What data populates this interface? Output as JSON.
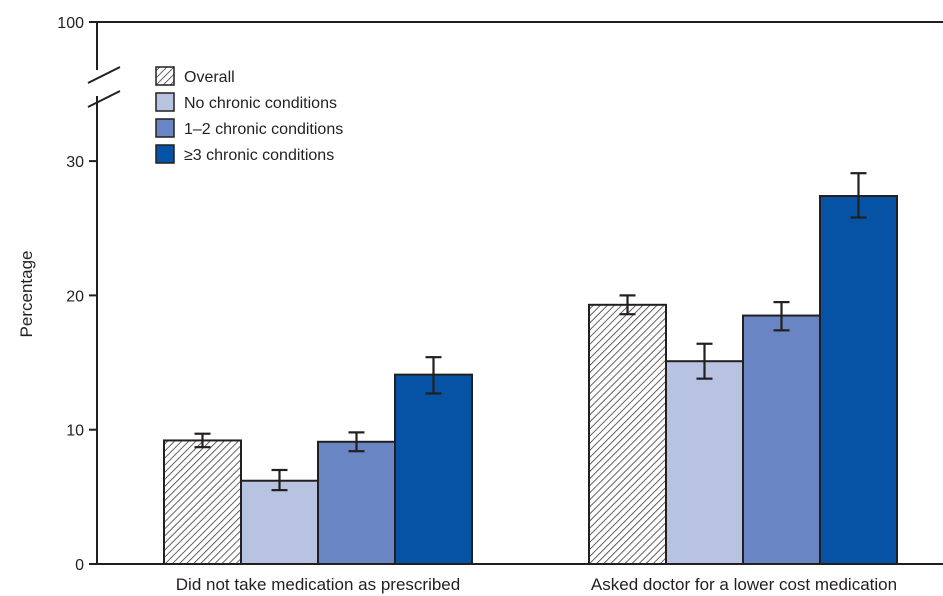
{
  "chart_data": {
    "type": "bar",
    "title": "",
    "xlabel": "",
    "ylabel": "Percentage",
    "categories": [
      "Did not take medication as prescribed",
      "Asked doctor for a lower cost medication"
    ],
    "series": [
      {
        "name": "Overall",
        "color": "#ffffff",
        "pattern": "diagonal-hatch",
        "values": [
          9.2,
          19.3
        ],
        "ci_low": [
          8.7,
          18.6
        ],
        "ci_high": [
          9.7,
          20.0
        ]
      },
      {
        "name": "No chronic conditions",
        "color": "#b8c3e2",
        "values": [
          6.2,
          15.1
        ],
        "ci_low": [
          5.5,
          13.8
        ],
        "ci_high": [
          7.0,
          16.4
        ]
      },
      {
        "name": "1–2 chronic conditions",
        "color": "#6985c4",
        "values": [
          9.1,
          18.5
        ],
        "ci_low": [
          8.4,
          17.4
        ],
        "ci_high": [
          9.8,
          19.5
        ]
      },
      {
        "name": "≥3 chronic conditions",
        "color": "#0653a6",
        "values": [
          14.1,
          27.4
        ],
        "ci_low": [
          12.7,
          25.8
        ],
        "ci_high": [
          15.4,
          29.1
        ]
      }
    ],
    "y_ticks": [
      "0",
      "10",
      "20",
      "30",
      "100"
    ],
    "ylim": [
      0,
      30
    ],
    "y_axis_break": true,
    "y_break_top_value": 100,
    "grid": false,
    "legend_position": "top-left"
  }
}
